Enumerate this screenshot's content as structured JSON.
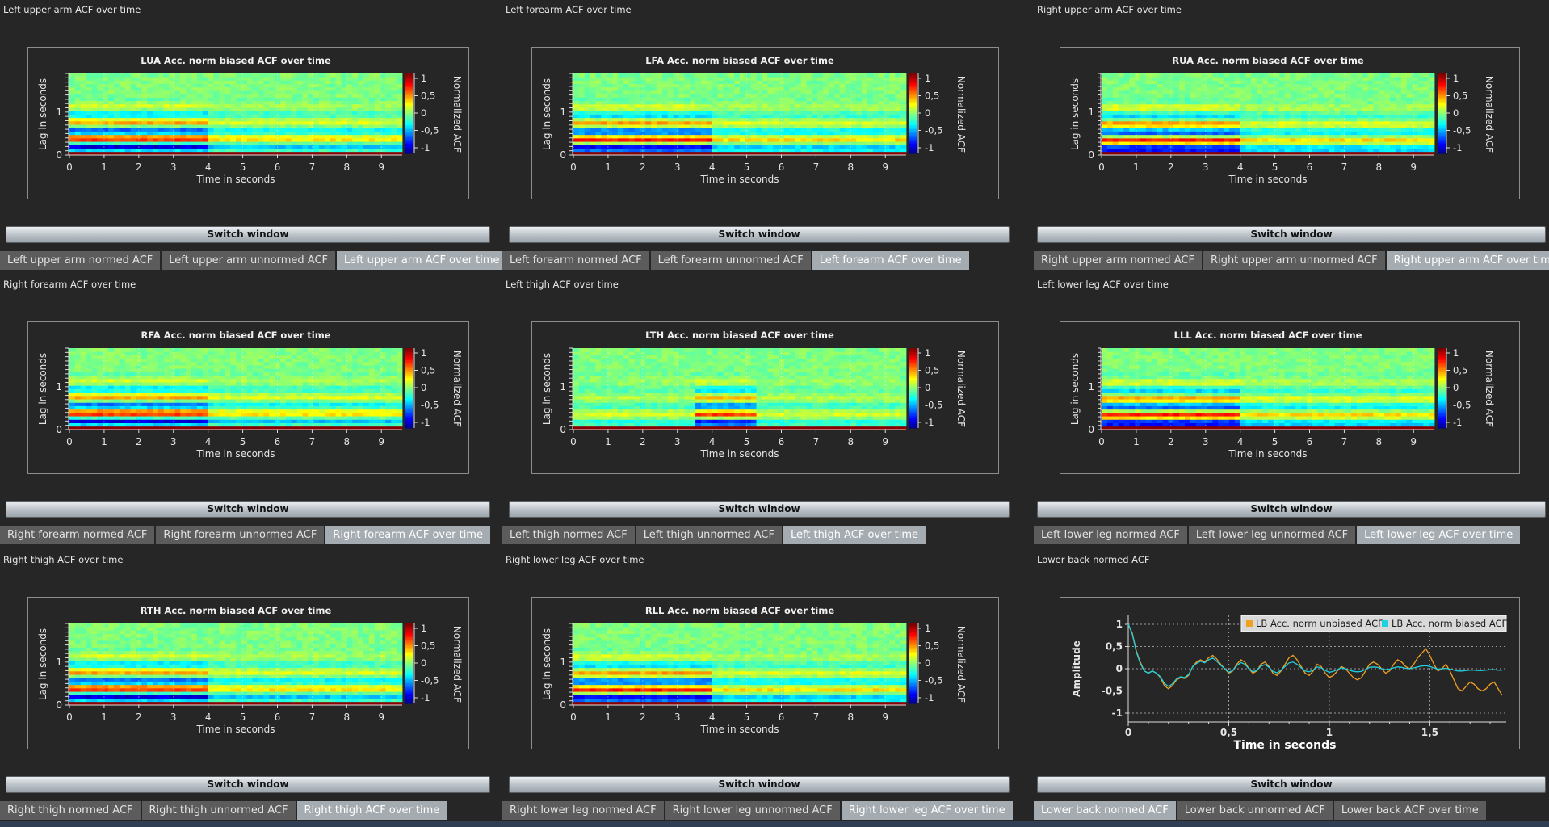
{
  "colors": {
    "background": "#262626",
    "frame": "#8c8c8c",
    "tab_active": "#a4abb1",
    "tab_inactive": "#5c5c5c",
    "series_unbiased": "#f0a020",
    "series_biased": "#20d0e0"
  },
  "switch_label": "Switch window",
  "panels": [
    {
      "title": "Left upper arm ACF over time",
      "tabs": [
        "Left upper arm normed ACF",
        "Left upper arm unnormed ACF",
        "Left upper arm ACF over time"
      ],
      "active_tab": 2,
      "chart_data": {
        "type": "heatmap",
        "title": "LUA Acc. norm biased ACF over time",
        "xlabel": "Time in seconds",
        "ylabel": "Lag in seconds",
        "colorbar_label": "Normalized ACF",
        "x_ticks": [
          "0",
          "1",
          "2",
          "3",
          "4",
          "5",
          "6",
          "7",
          "8",
          "9"
        ],
        "y_ticks": [
          "0",
          "1"
        ],
        "colorbar_ticks": [
          "1",
          "0,5",
          "0",
          "-0,5",
          "-1"
        ],
        "xlim": [
          0,
          9.6
        ],
        "ylim": [
          0,
          1.9
        ],
        "zlim": [
          -1,
          1
        ]
      }
    },
    {
      "title": "Left forearm ACF over time",
      "tabs": [
        "Left forearm normed ACF",
        "Left forearm unnormed ACF",
        "Left forearm ACF over time"
      ],
      "active_tab": 2,
      "chart_data": {
        "type": "heatmap",
        "title": "LFA Acc. norm biased ACF over time",
        "xlabel": "Time in seconds",
        "ylabel": "Lag in seconds",
        "colorbar_label": "Normalized ACF",
        "x_ticks": [
          "0",
          "1",
          "2",
          "3",
          "4",
          "5",
          "6",
          "7",
          "8",
          "9"
        ],
        "y_ticks": [
          "0",
          "1"
        ],
        "colorbar_ticks": [
          "1",
          "0,5",
          "0",
          "-0,5",
          "-1"
        ],
        "xlim": [
          0,
          9.6
        ],
        "ylim": [
          0,
          1.9
        ],
        "zlim": [
          -1,
          1
        ]
      }
    },
    {
      "title": "Right upper arm ACF over time",
      "tabs": [
        "Right upper arm normed ACF",
        "Right upper arm unnormed ACF",
        "Right upper arm ACF over time"
      ],
      "active_tab": 2,
      "chart_data": {
        "type": "heatmap",
        "title": "RUA Acc. norm biased ACF over time",
        "xlabel": "Time in seconds",
        "ylabel": "Lag in seconds",
        "colorbar_label": "Normalized ACF",
        "x_ticks": [
          "0",
          "1",
          "2",
          "3",
          "4",
          "5",
          "6",
          "7",
          "8",
          "9"
        ],
        "y_ticks": [
          "0",
          "1"
        ],
        "colorbar_ticks": [
          "1",
          "0,5",
          "0",
          "-0,5",
          "-1"
        ],
        "xlim": [
          0,
          9.6
        ],
        "ylim": [
          0,
          1.9
        ],
        "zlim": [
          -1,
          1
        ]
      }
    },
    {
      "title": "Right forearm ACF over time",
      "tabs": [
        "Right forearm normed ACF",
        "Right forearm unnormed ACF",
        "Right forearm ACF over time"
      ],
      "active_tab": 2,
      "chart_data": {
        "type": "heatmap",
        "title": "RFA Acc. norm biased ACF over time",
        "xlabel": "Time in seconds",
        "ylabel": "Lag in seconds",
        "colorbar_label": "Normalized ACF",
        "x_ticks": [
          "0",
          "1",
          "2",
          "3",
          "4",
          "5",
          "6",
          "7",
          "8",
          "9"
        ],
        "y_ticks": [
          "0",
          "1"
        ],
        "colorbar_ticks": [
          "1",
          "0,5",
          "0",
          "-0,5",
          "-1"
        ],
        "xlim": [
          0,
          9.6
        ],
        "ylim": [
          0,
          1.9
        ],
        "zlim": [
          -1,
          1
        ]
      }
    },
    {
      "title": "Left thigh ACF over time",
      "tabs": [
        "Left thigh normed ACF",
        "Left thigh unnormed ACF",
        "Left thigh ACF over time"
      ],
      "active_tab": 2,
      "chart_data": {
        "type": "heatmap",
        "title": "LTH Acc. norm biased ACF over time",
        "xlabel": "Time in seconds",
        "ylabel": "Lag in seconds",
        "colorbar_label": "Normalized ACF",
        "x_ticks": [
          "0",
          "1",
          "2",
          "3",
          "4",
          "5",
          "6",
          "7",
          "8",
          "9"
        ],
        "y_ticks": [
          "0",
          "1"
        ],
        "colorbar_ticks": [
          "1",
          "0,5",
          "0",
          "-0,5",
          "-1"
        ],
        "xlim": [
          0,
          9.6
        ],
        "ylim": [
          0,
          1.9
        ],
        "zlim": [
          -1,
          1
        ]
      }
    },
    {
      "title": "Left lower leg ACF over time",
      "tabs": [
        "Left lower leg normed ACF",
        "Left lower leg unnormed ACF",
        "Left lower leg ACF over time"
      ],
      "active_tab": 2,
      "chart_data": {
        "type": "heatmap",
        "title": "LLL Acc. norm biased ACF over time",
        "xlabel": "Time in seconds",
        "ylabel": "Lag in seconds",
        "colorbar_label": "Normalized ACF",
        "x_ticks": [
          "0",
          "1",
          "2",
          "3",
          "4",
          "5",
          "6",
          "7",
          "8",
          "9"
        ],
        "y_ticks": [
          "0",
          "1"
        ],
        "colorbar_ticks": [
          "1",
          "0,5",
          "0",
          "-0,5",
          "-1"
        ],
        "xlim": [
          0,
          9.6
        ],
        "ylim": [
          0,
          1.9
        ],
        "zlim": [
          -1,
          1
        ]
      }
    },
    {
      "title": "Right thigh ACF over time",
      "tabs": [
        "Right thigh normed ACF",
        "Right thigh unnormed ACF",
        "Right thigh ACF over time"
      ],
      "active_tab": 2,
      "chart_data": {
        "type": "heatmap",
        "title": "RTH Acc. norm biased ACF over time",
        "xlabel": "Time in seconds",
        "ylabel": "Lag in seconds",
        "colorbar_label": "Normalized ACF",
        "x_ticks": [
          "0",
          "1",
          "2",
          "3",
          "4",
          "5",
          "6",
          "7",
          "8",
          "9"
        ],
        "y_ticks": [
          "0",
          "1"
        ],
        "colorbar_ticks": [
          "1",
          "0,5",
          "0",
          "-0,5",
          "-1"
        ],
        "xlim": [
          0,
          9.6
        ],
        "ylim": [
          0,
          1.9
        ],
        "zlim": [
          -1,
          1
        ]
      }
    },
    {
      "title": "Right lower leg ACF over time",
      "tabs": [
        "Right lower leg normed ACF",
        "Right lower leg unnormed ACF",
        "Right lower leg ACF over time"
      ],
      "active_tab": 2,
      "chart_data": {
        "type": "heatmap",
        "title": "RLL Acc. norm biased ACF over time",
        "xlabel": "Time in seconds",
        "ylabel": "Lag in seconds",
        "colorbar_label": "Normalized ACF",
        "x_ticks": [
          "0",
          "1",
          "2",
          "3",
          "4",
          "5",
          "6",
          "7",
          "8",
          "9"
        ],
        "y_ticks": [
          "0",
          "1"
        ],
        "colorbar_ticks": [
          "1",
          "0,5",
          "0",
          "-0,5",
          "-1"
        ],
        "xlim": [
          0,
          9.6
        ],
        "ylim": [
          0,
          1.9
        ],
        "zlim": [
          -1,
          1
        ]
      }
    },
    {
      "title": "Lower back normed ACF",
      "tabs": [
        "Lower back normed ACF",
        "Lower back unnormed ACF",
        "Lower back ACF over time"
      ],
      "active_tab": 0,
      "chart_data": {
        "type": "line",
        "xlabel": "Time in seconds",
        "ylabel": "Amplitude",
        "x_ticks": [
          "0",
          "0,5",
          "1",
          "1,5"
        ],
        "y_ticks": [
          "1",
          "0,5",
          "0",
          "-0,5",
          "-1"
        ],
        "xlim": [
          0,
          1.88
        ],
        "ylim": [
          -1.2,
          1.2
        ],
        "legend_position": "top-right",
        "x": [
          0,
          0.02,
          0.04,
          0.06,
          0.08,
          0.1,
          0.12,
          0.14,
          0.16,
          0.18,
          0.2,
          0.22,
          0.24,
          0.26,
          0.28,
          0.3,
          0.32,
          0.34,
          0.36,
          0.38,
          0.4,
          0.42,
          0.44,
          0.46,
          0.48,
          0.5,
          0.52,
          0.54,
          0.56,
          0.58,
          0.6,
          0.62,
          0.64,
          0.66,
          0.68,
          0.7,
          0.72,
          0.74,
          0.76,
          0.78,
          0.8,
          0.82,
          0.84,
          0.86,
          0.88,
          0.9,
          0.92,
          0.94,
          0.96,
          0.98,
          1.0,
          1.02,
          1.04,
          1.06,
          1.08,
          1.1,
          1.12,
          1.14,
          1.16,
          1.18,
          1.2,
          1.22,
          1.24,
          1.26,
          1.28,
          1.3,
          1.32,
          1.34,
          1.36,
          1.38,
          1.4,
          1.42,
          1.44,
          1.46,
          1.48,
          1.5,
          1.52,
          1.54,
          1.56,
          1.58,
          1.6,
          1.62,
          1.64,
          1.66,
          1.68,
          1.7,
          1.72,
          1.74,
          1.76,
          1.78,
          1.8,
          1.82,
          1.84,
          1.86
        ],
        "series": [
          {
            "name": "LB Acc. norm unbiased ACF",
            "color": "#f0a020",
            "values": [
              1.0,
              0.8,
              0.4,
              0.15,
              -0.05,
              -0.1,
              -0.05,
              -0.1,
              -0.2,
              -0.38,
              -0.45,
              -0.38,
              -0.25,
              -0.2,
              -0.22,
              -0.15,
              0.05,
              0.15,
              0.2,
              0.15,
              0.25,
              0.3,
              0.22,
              0.1,
              0.0,
              -0.1,
              -0.05,
              0.1,
              0.2,
              0.15,
              0.0,
              -0.1,
              -0.05,
              0.1,
              0.15,
              0.05,
              -0.1,
              -0.15,
              -0.05,
              0.1,
              0.25,
              0.3,
              0.2,
              0.05,
              -0.1,
              -0.15,
              -0.05,
              0.1,
              0.05,
              -0.1,
              -0.2,
              -0.15,
              -0.05,
              0.05,
              0.0,
              -0.1,
              -0.2,
              -0.25,
              -0.2,
              -0.05,
              0.1,
              0.15,
              0.1,
              0.0,
              -0.1,
              -0.05,
              0.1,
              0.2,
              0.15,
              0.05,
              0.0,
              0.1,
              0.25,
              0.35,
              0.45,
              0.3,
              0.1,
              -0.05,
              0.0,
              0.1,
              -0.05,
              -0.25,
              -0.45,
              -0.5,
              -0.4,
              -0.3,
              -0.35,
              -0.45,
              -0.5,
              -0.45,
              -0.35,
              -0.3,
              -0.45,
              -0.6
            ]
          },
          {
            "name": "LB Acc. norm biased ACF",
            "color": "#20d0e0",
            "values": [
              1.0,
              0.78,
              0.38,
              0.12,
              -0.05,
              -0.1,
              -0.05,
              -0.1,
              -0.18,
              -0.33,
              -0.4,
              -0.34,
              -0.23,
              -0.18,
              -0.2,
              -0.13,
              0.04,
              0.12,
              0.17,
              0.13,
              0.2,
              0.24,
              0.17,
              0.08,
              0.0,
              -0.08,
              -0.04,
              0.07,
              0.14,
              0.1,
              0.0,
              -0.07,
              -0.04,
              0.06,
              0.09,
              0.03,
              -0.06,
              -0.09,
              -0.03,
              0.05,
              0.13,
              0.15,
              0.1,
              0.02,
              -0.05,
              -0.07,
              -0.03,
              0.04,
              0.02,
              -0.04,
              -0.08,
              -0.06,
              -0.02,
              0.02,
              0.0,
              -0.03,
              -0.06,
              -0.07,
              -0.06,
              -0.02,
              0.03,
              0.04,
              0.03,
              0.0,
              -0.02,
              -0.01,
              0.02,
              0.04,
              0.03,
              0.01,
              0.0,
              0.02,
              0.04,
              0.06,
              0.07,
              0.05,
              0.02,
              -0.01,
              0.0,
              0.01,
              -0.01,
              -0.03,
              -0.05,
              -0.05,
              -0.04,
              -0.03,
              -0.03,
              -0.04,
              -0.04,
              -0.03,
              -0.02,
              -0.02,
              -0.03,
              -0.03
            ]
          }
        ]
      }
    }
  ]
}
